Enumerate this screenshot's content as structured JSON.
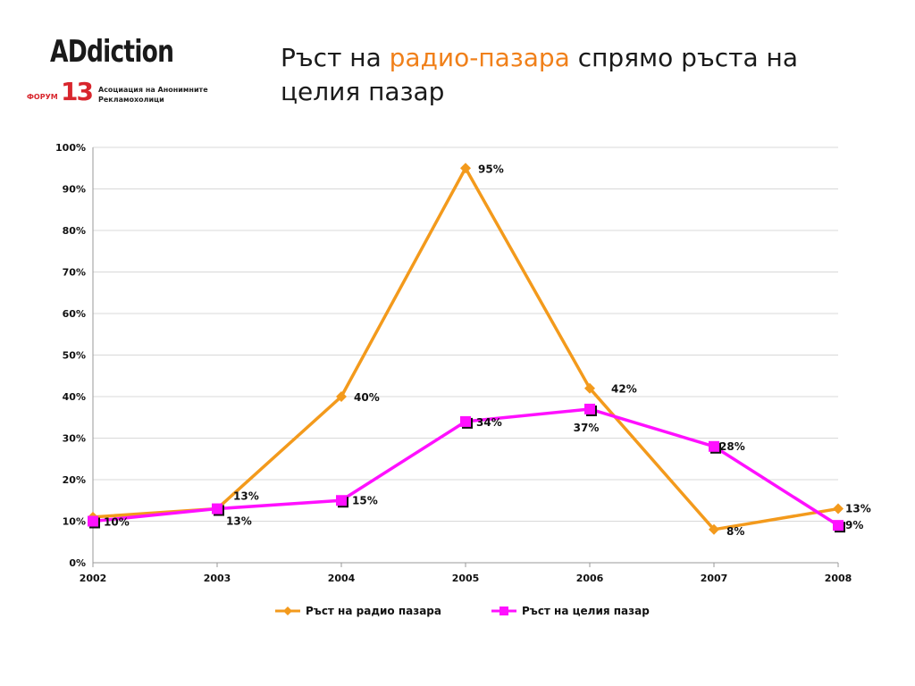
{
  "logo": {
    "word": "ADdiction",
    "forum": "ФОРУМ",
    "number": "13",
    "subtitle_line1": "Асоциация на Анонимните",
    "subtitle_line2": "Рекламохолици"
  },
  "title": {
    "part1": "Ръст на ",
    "accent": "радио-пазара",
    "part2": " спрямо ръста на целия пазар"
  },
  "colors": {
    "radio": "#f39a1c",
    "total": "#ff10ff",
    "grid": "#d8d8d8",
    "title_accent": "#f0801a"
  },
  "chart_data": {
    "type": "line",
    "x": [
      "2002",
      "2003",
      "2004",
      "2005",
      "2006",
      "2007",
      "2008"
    ],
    "ylim": [
      0,
      100
    ],
    "yticks": [
      "0%",
      "10%",
      "20%",
      "30%",
      "40%",
      "50%",
      "60%",
      "70%",
      "80%",
      "90%",
      "100%"
    ],
    "grid": true,
    "legend_position": "bottom",
    "series": [
      {
        "name": "Ръст на радио пазара",
        "marker": "diamond",
        "values": [
          11,
          13,
          40,
          95,
          42,
          8,
          13
        ],
        "labels": [
          "",
          "13%",
          "40%",
          "95%",
          "42%",
          "8%",
          "13%"
        ]
      },
      {
        "name": "Ръст на целия пазар",
        "marker": "square",
        "values": [
          10,
          13,
          15,
          34,
          37,
          28,
          9
        ],
        "labels": [
          "10%",
          "13%",
          "15%",
          "34%",
          "37%",
          "28%",
          "9%"
        ]
      }
    ]
  }
}
